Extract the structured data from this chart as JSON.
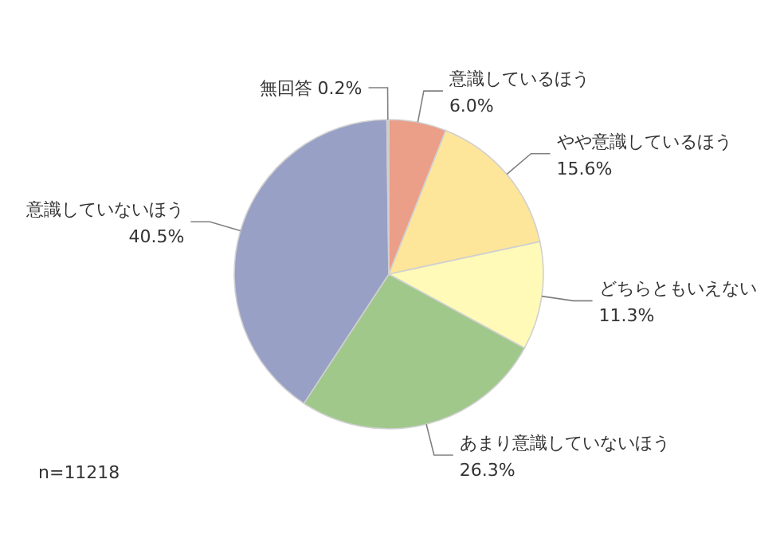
{
  "chart_data": {
    "type": "pie",
    "categories": [
      "意識しているほう",
      "やや意識しているほう",
      "どちらともいえない",
      "あまり意識していないほう",
      "意識していないほう",
      "無回答"
    ],
    "values": [
      6.0,
      15.6,
      11.3,
      26.3,
      40.5,
      0.2
    ],
    "value_labels": [
      "6.0%",
      "15.6%",
      "11.3%",
      "26.3%",
      "40.5%",
      "0.2%"
    ],
    "colors": [
      "#eb9e88",
      "#fde59a",
      "#fffab8",
      "#9fc88a",
      "#98a0c6",
      "#c8c8c8"
    ],
    "annotations": [
      "n=11218"
    ]
  }
}
